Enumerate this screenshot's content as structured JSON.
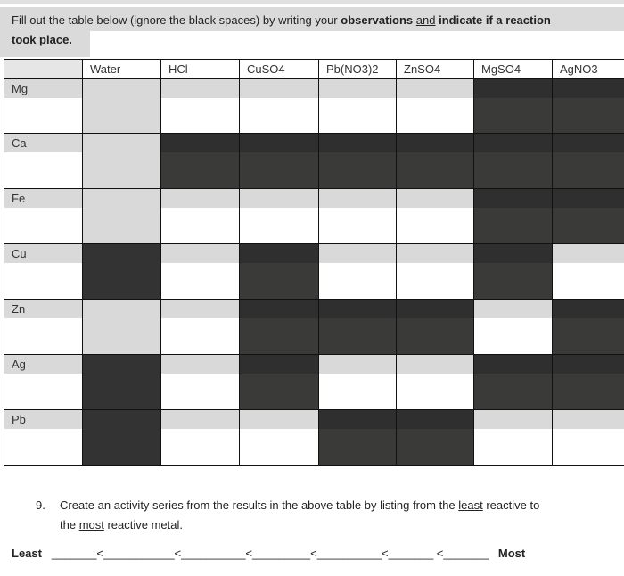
{
  "instructions": {
    "part1": "Fill out the table below (ignore the black spaces) by writing your ",
    "bold1": "observations",
    "underline1": "and",
    "bold2": "indicate if a reaction",
    "bold3": "took place",
    "end": "."
  },
  "table": {
    "columns": [
      "Water",
      "HCl",
      "CuSO4",
      "Pb(NO3)2",
      "ZnSO4",
      "MgSO4",
      "AgNO3"
    ],
    "rows": [
      {
        "metal": "Mg",
        "cells": [
          "gray",
          "open",
          "open",
          "open",
          "open",
          "dark",
          "dark"
        ]
      },
      {
        "metal": "Ca",
        "cells": [
          "gray",
          "dark",
          "dark",
          "dark",
          "dark",
          "dark",
          "dark"
        ]
      },
      {
        "metal": "Fe",
        "cells": [
          "gray",
          "open",
          "open",
          "open",
          "open",
          "dark",
          "dark"
        ]
      },
      {
        "metal": "Cu",
        "cells": [
          "darkfull",
          "open",
          "dark",
          "open",
          "open",
          "dark",
          "open"
        ]
      },
      {
        "metal": "Zn",
        "cells": [
          "gray",
          "open",
          "dark",
          "dark",
          "dark",
          "open",
          "dark"
        ]
      },
      {
        "metal": "Ag",
        "cells": [
          "darkfull",
          "open",
          "dark",
          "open",
          "open",
          "dark",
          "dark"
        ]
      },
      {
        "metal": "Pb",
        "cells": [
          "darkfull",
          "open",
          "open",
          "dark",
          "dark",
          "open",
          "open"
        ]
      }
    ]
  },
  "question": {
    "number": "9.",
    "line1_a": "Create an activity series from the results in the above table by listing from the ",
    "line1_u": "least",
    "line1_b": " reactive to",
    "line2_a": "the ",
    "line2_u": "most",
    "line2_b": " reactive metal."
  },
  "series": {
    "least": "Least",
    "blanks": "_______<___________<__________<_________<__________<_______ <_______",
    "most": "Most"
  }
}
